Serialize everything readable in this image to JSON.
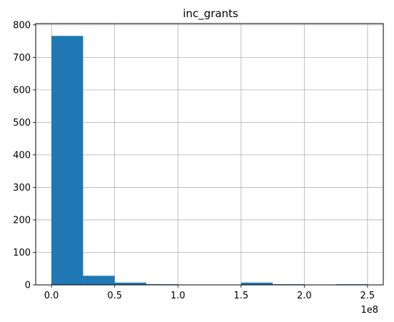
{
  "chart_data": {
    "type": "bar",
    "title": "inc_grants",
    "xlabel": "",
    "ylabel": "",
    "x_offset_label": "1e8",
    "x_scale": 100000000,
    "bins": [
      {
        "x0": 0.0,
        "x1": 0.25,
        "count": 766
      },
      {
        "x0": 0.25,
        "x1": 0.5,
        "count": 28
      },
      {
        "x0": 0.5,
        "x1": 0.75,
        "count": 7
      },
      {
        "x0": 0.75,
        "x1": 1.0,
        "count": 2
      },
      {
        "x0": 1.0,
        "x1": 1.25,
        "count": 0
      },
      {
        "x0": 1.25,
        "x1": 1.5,
        "count": 0
      },
      {
        "x0": 1.5,
        "x1": 1.75,
        "count": 7
      },
      {
        "x0": 1.75,
        "x1": 2.0,
        "count": 2
      },
      {
        "x0": 2.0,
        "x1": 2.25,
        "count": 0
      },
      {
        "x0": 2.25,
        "x1": 2.5,
        "count": 2
      }
    ],
    "x_ticks": [
      0.0,
      0.5,
      1.0,
      1.5,
      2.0,
      2.5
    ],
    "x_tick_labels": [
      "0.0",
      "0.5",
      "1.0",
      "1.5",
      "2.0",
      "2.5"
    ],
    "y_ticks": [
      0,
      100,
      200,
      300,
      400,
      500,
      600,
      700,
      800
    ],
    "y_tick_labels": [
      "0",
      "100",
      "200",
      "300",
      "400",
      "500",
      "600",
      "700",
      "800"
    ],
    "xlim": [
      -0.125,
      2.625
    ],
    "ylim": [
      0,
      804
    ],
    "grid": true,
    "bar_color": "#1f77b4",
    "grid_color": "#b0b0b0"
  }
}
